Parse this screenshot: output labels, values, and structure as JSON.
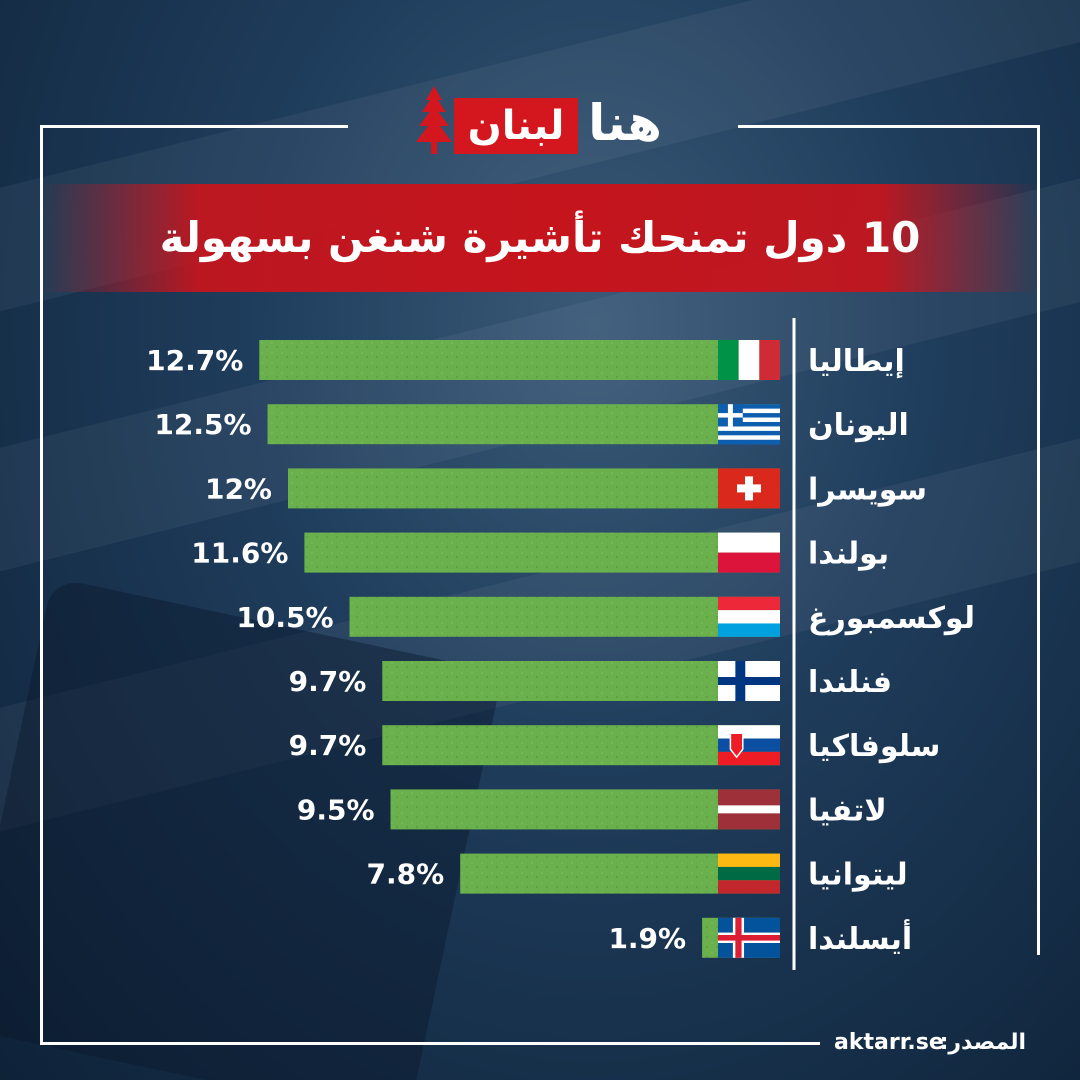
{
  "brand": {
    "logo_red_text": "لبنان",
    "logo_white_text": "هنا"
  },
  "colors": {
    "bar_green": "#6ab04c",
    "title_red": "#c5141c",
    "logo_red": "#d4161e",
    "text_white": "#ffffff"
  },
  "source": {
    "label": "المصدر:",
    "value": "aktarr.se"
  },
  "chart_data": {
    "type": "bar",
    "orientation": "horizontal",
    "title": "10 دول تمنحك تأشيرة شنغن بسهولة",
    "xlabel": "",
    "ylabel": "",
    "grid": false,
    "legend": "none",
    "xlim": [
      0,
      13
    ],
    "categories": [
      "إيطاليا",
      "اليونان",
      "سويسرا",
      "بولندا",
      "لوكسمبورغ",
      "فنلندا",
      "سلوفاكيا",
      "لاتفيا",
      "ليتوانيا",
      "أيسلندا"
    ],
    "values": [
      12.7,
      12.5,
      12,
      11.6,
      10.5,
      9.7,
      9.7,
      9.5,
      7.8,
      1.9
    ],
    "value_labels": [
      "12.7%",
      "12.5%",
      "12%",
      "11.6%",
      "10.5%",
      "9.7%",
      "9.7%",
      "9.5%",
      "7.8%",
      "1.9%"
    ],
    "flags": [
      "italy-flag-icon",
      "greece-flag-icon",
      "switzerland-flag-icon",
      "poland-flag-icon",
      "luxembourg-flag-icon",
      "finland-flag-icon",
      "slovakia-flag-icon",
      "latvia-flag-icon",
      "lithuania-flag-icon",
      "iceland-flag-icon"
    ]
  }
}
